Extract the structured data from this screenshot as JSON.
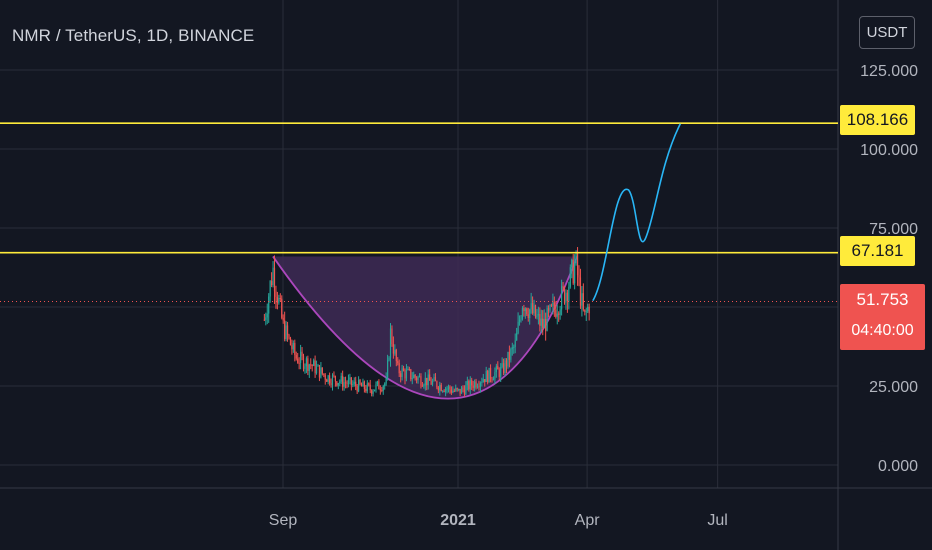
{
  "header": {
    "title": "NMR / TetherUS, 1D, BINANCE"
  },
  "toolbar": {
    "currency_label": "USDT"
  },
  "price_tags": {
    "resistance_upper": "108.166",
    "resistance_lower": "67.181",
    "current_price": "51.753",
    "countdown": "04:40:00"
  },
  "colors": {
    "background": "#131722",
    "grid": "#2a2e39",
    "up_candle": "#26a69a",
    "down_candle": "#ef5350",
    "horizontal_line": "#ffeb3b",
    "cup_curve": "#ab47bc",
    "cup_fill": "#3e2a55",
    "projection": "#29b6f6",
    "axis_text": "#b2b5be"
  },
  "chart_data": {
    "type": "candlestick",
    "symbol": "NMR / TetherUS",
    "interval": "1D",
    "exchange": "BINANCE",
    "y_axis": {
      "ticks": [
        "125.000",
        "100.000",
        "75.000",
        "25.000",
        "0.000"
      ],
      "ylim": [
        -8,
        145
      ]
    },
    "x_axis": {
      "ticks": [
        "Sep",
        "2021",
        "Apr",
        "Jul"
      ]
    },
    "horizontal_lines": [
      108.166,
      67.181
    ],
    "current_price": 51.753,
    "cup_shape": {
      "start": [
        "2020-08-25",
        66
      ],
      "bottom": [
        "2020-12-25",
        21
      ],
      "end": [
        "2021-03-25",
        66
      ]
    },
    "projection_path": [
      [
        "2021-04-05",
        52
      ],
      [
        "2021-04-30",
        87
      ],
      [
        "2021-05-12",
        72
      ],
      [
        "2021-06-05",
        108
      ]
    ],
    "price_path": [
      [
        "2020-08-19",
        46
      ],
      [
        "2020-08-25",
        62
      ],
      [
        "2020-09-01",
        44
      ],
      [
        "2020-09-10",
        34
      ],
      [
        "2020-09-20",
        32
      ],
      [
        "2020-10-01",
        28
      ],
      [
        "2020-10-15",
        26
      ],
      [
        "2020-11-01",
        24
      ],
      [
        "2020-11-12",
        26
      ],
      [
        "2020-11-15",
        42
      ],
      [
        "2020-11-20",
        30
      ],
      [
        "2020-12-01",
        28
      ],
      [
        "2020-12-15",
        26
      ],
      [
        "2021-01-01",
        23
      ],
      [
        "2021-01-20",
        28
      ],
      [
        "2021-02-01",
        30
      ],
      [
        "2021-02-10",
        38
      ],
      [
        "2021-02-15",
        52
      ],
      [
        "2021-03-01",
        44
      ],
      [
        "2021-03-10",
        50
      ],
      [
        "2021-03-18",
        56
      ],
      [
        "2021-03-24",
        64
      ],
      [
        "2021-03-30",
        46
      ],
      [
        "2021-04-03",
        51.753
      ]
    ]
  }
}
